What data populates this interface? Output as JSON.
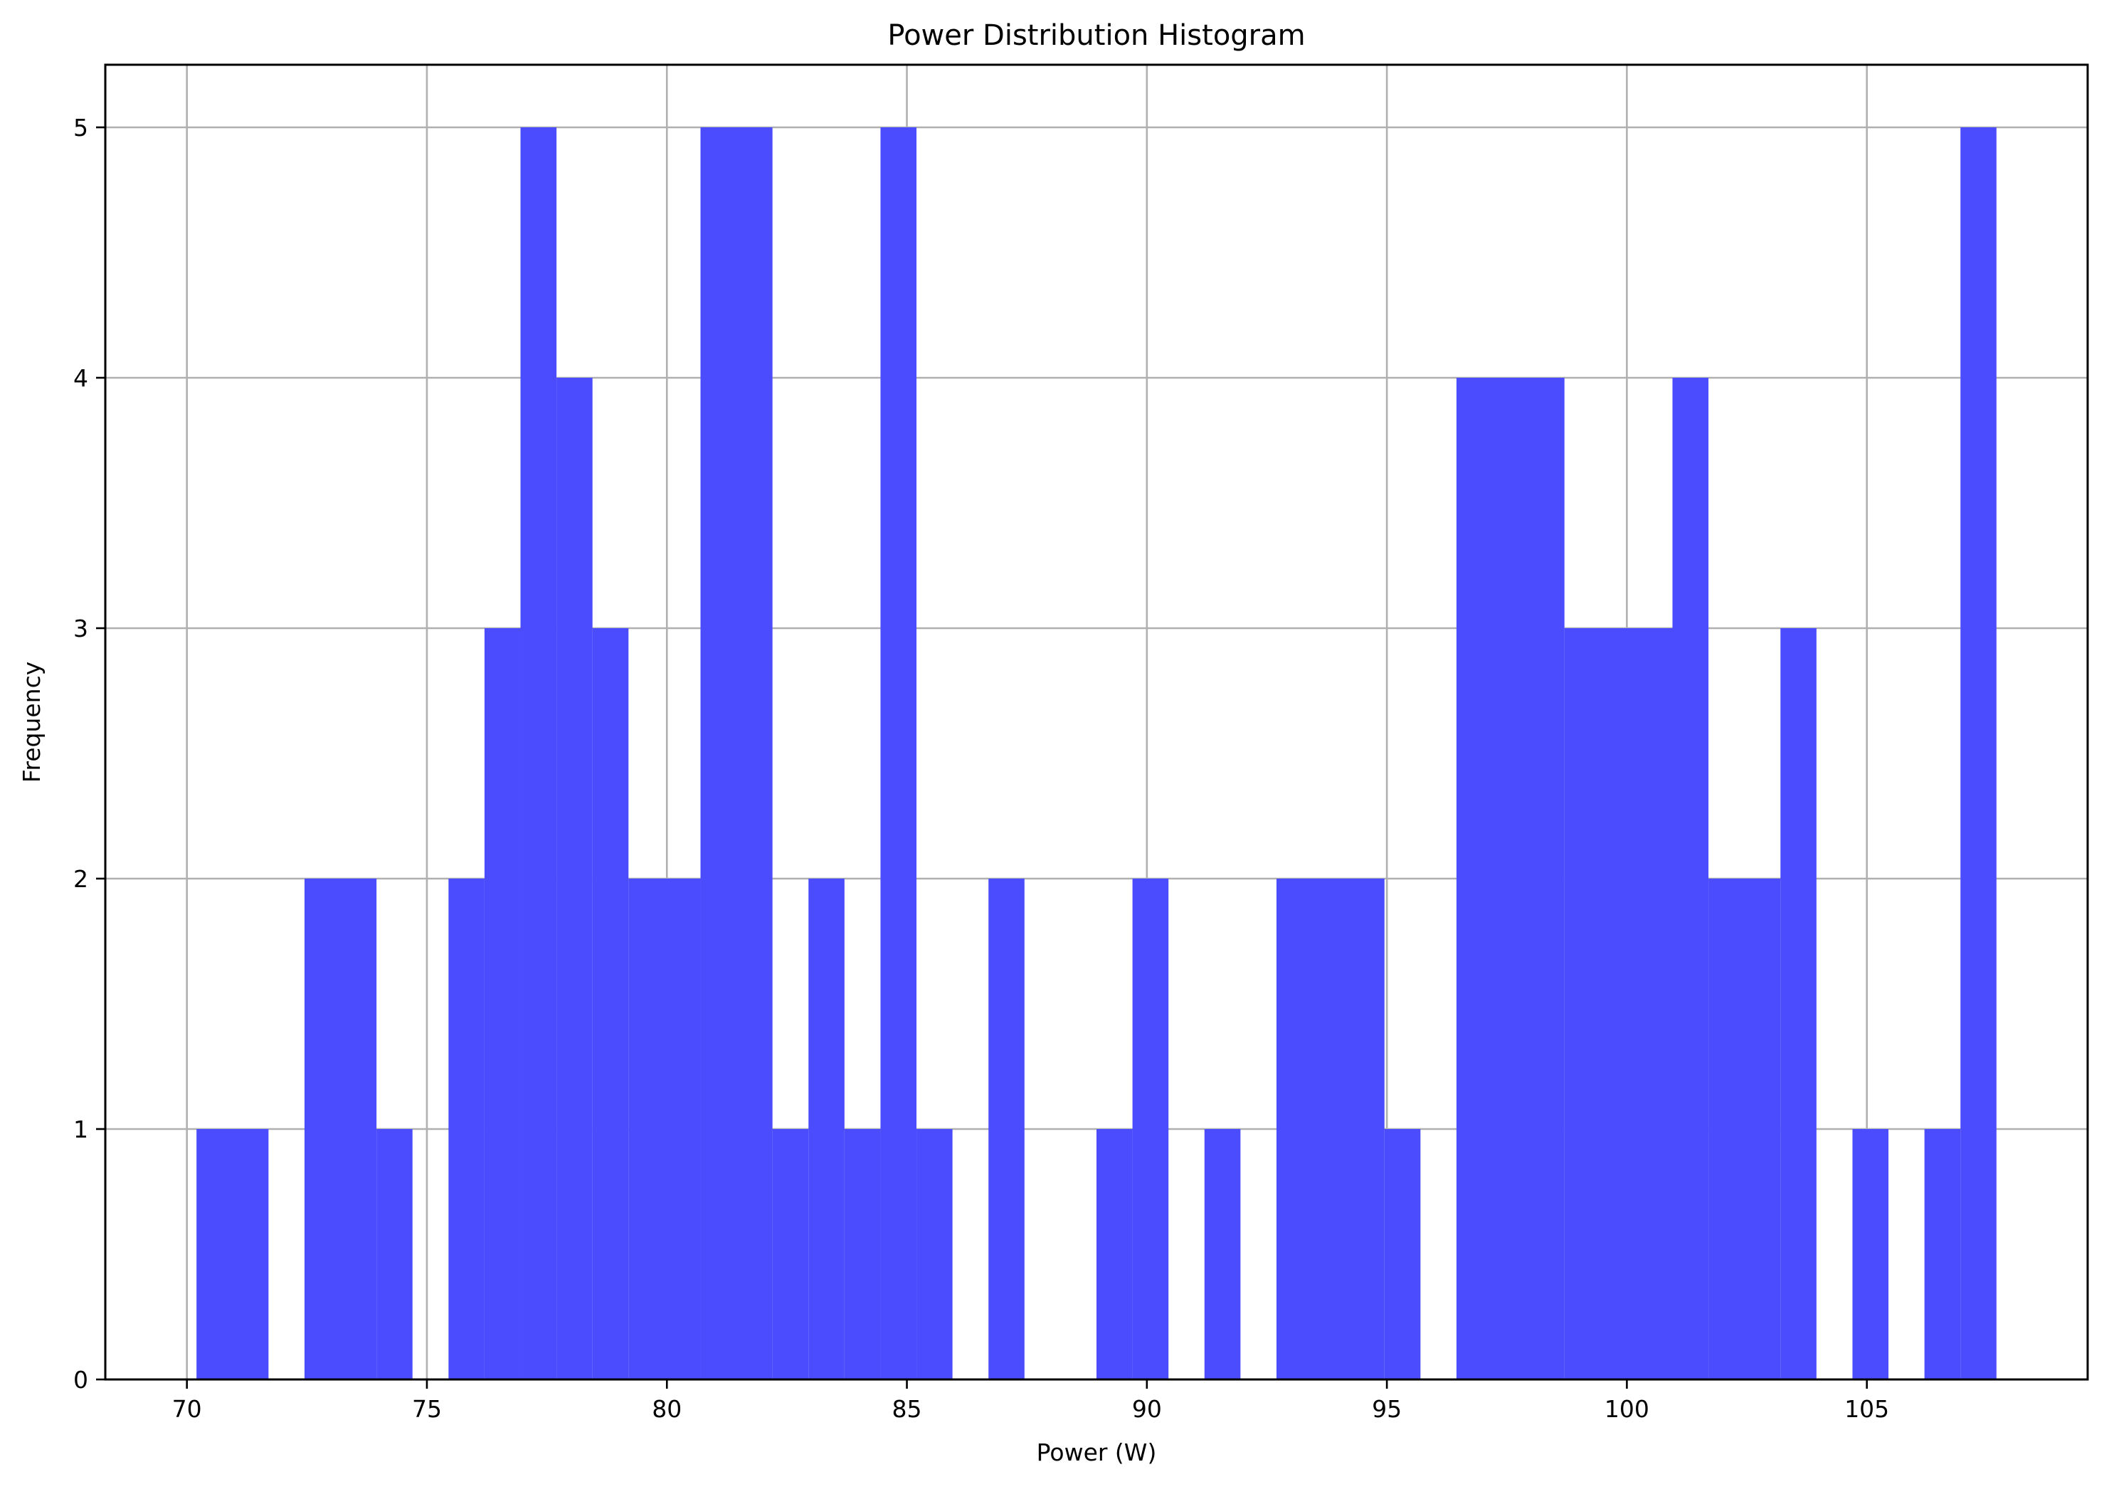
{
  "chart_data": {
    "type": "bar",
    "title": "Power Distribution Histogram",
    "xlabel": "Power (W)",
    "ylabel": "Frequency",
    "xlim": [
      68.3,
      109.6
    ],
    "ylim": [
      0,
      5.25
    ],
    "xticks": [
      70,
      75,
      80,
      85,
      90,
      95,
      100,
      105
    ],
    "yticks": [
      0,
      1,
      2,
      3,
      4,
      5
    ],
    "grid": true,
    "legend": "none",
    "bar_color": "#4c4cff",
    "series": [
      {
        "bins": [
          {
            "x0": 70.2,
            "x1": 71.7,
            "count": 1
          },
          {
            "x0": 72.45,
            "x1": 73.95,
            "count": 2
          },
          {
            "x0": 73.95,
            "x1": 74.7,
            "count": 1
          },
          {
            "x0": 75.45,
            "x1": 76.2,
            "count": 2
          },
          {
            "x0": 76.2,
            "x1": 76.95,
            "count": 3
          },
          {
            "x0": 76.95,
            "x1": 77.7,
            "count": 5
          },
          {
            "x0": 77.7,
            "x1": 78.45,
            "count": 4
          },
          {
            "x0": 78.45,
            "x1": 79.2,
            "count": 3
          },
          {
            "x0": 79.2,
            "x1": 80.7,
            "count": 2
          },
          {
            "x0": 80.7,
            "x1": 82.2,
            "count": 5
          },
          {
            "x0": 82.2,
            "x1": 82.95,
            "count": 1
          },
          {
            "x0": 82.95,
            "x1": 83.7,
            "count": 2
          },
          {
            "x0": 83.7,
            "x1": 84.45,
            "count": 1
          },
          {
            "x0": 84.45,
            "x1": 85.2,
            "count": 5
          },
          {
            "x0": 85.2,
            "x1": 85.95,
            "count": 1
          },
          {
            "x0": 86.7,
            "x1": 87.45,
            "count": 2
          },
          {
            "x0": 88.95,
            "x1": 89.7,
            "count": 1
          },
          {
            "x0": 89.7,
            "x1": 90.45,
            "count": 2
          },
          {
            "x0": 91.2,
            "x1": 91.95,
            "count": 1
          },
          {
            "x0": 92.7,
            "x1": 94.95,
            "count": 2
          },
          {
            "x0": 94.95,
            "x1": 95.7,
            "count": 1
          },
          {
            "x0": 96.45,
            "x1": 98.7,
            "count": 4
          },
          {
            "x0": 98.7,
            "x1": 100.95,
            "count": 3
          },
          {
            "x0": 100.95,
            "x1": 101.7,
            "count": 4
          },
          {
            "x0": 101.7,
            "x1": 103.2,
            "count": 2
          },
          {
            "x0": 103.2,
            "x1": 103.95,
            "count": 3
          },
          {
            "x0": 104.7,
            "x1": 105.45,
            "count": 1
          },
          {
            "x0": 106.2,
            "x1": 106.95,
            "count": 1
          },
          {
            "x0": 106.95,
            "x1": 107.7,
            "count": 5
          }
        ]
      }
    ]
  }
}
